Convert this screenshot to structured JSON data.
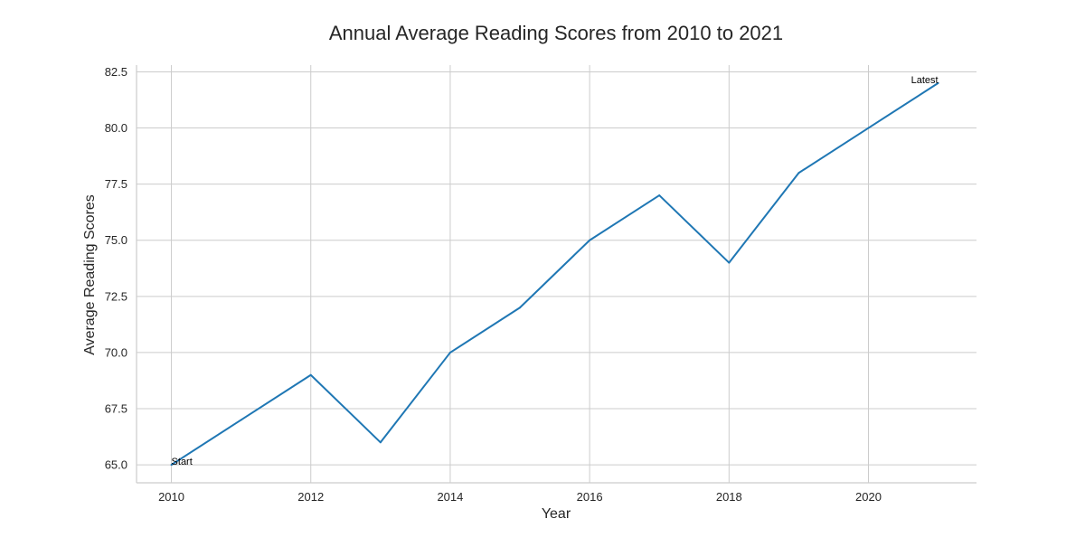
{
  "chart_data": {
    "type": "line",
    "title": "Annual Average Reading Scores from 2010 to 2021",
    "xlabel": "Year",
    "ylabel": "Average Reading Scores",
    "x": [
      2010,
      2011,
      2012,
      2013,
      2014,
      2015,
      2016,
      2017,
      2018,
      2019,
      2020,
      2021
    ],
    "series": [
      {
        "name": "",
        "values": [
          65,
          67,
          69,
          66,
          70,
          72,
          75,
          77,
          74,
          78,
          80,
          82
        ],
        "color": "#1f77b4"
      }
    ],
    "xlim": [
      2009.5,
      2021.55
    ],
    "ylim": [
      64.2,
      82.8
    ],
    "xticks": [
      2010,
      2012,
      2014,
      2016,
      2018,
      2020
    ],
    "yticks": [
      65.0,
      67.5,
      70.0,
      72.5,
      75.0,
      77.5,
      80.0,
      82.5
    ],
    "grid": true,
    "annotations": [
      {
        "text": "Start",
        "x": 2010,
        "y": 65
      },
      {
        "text": "Latest",
        "x": 2021,
        "y": 82
      }
    ]
  }
}
